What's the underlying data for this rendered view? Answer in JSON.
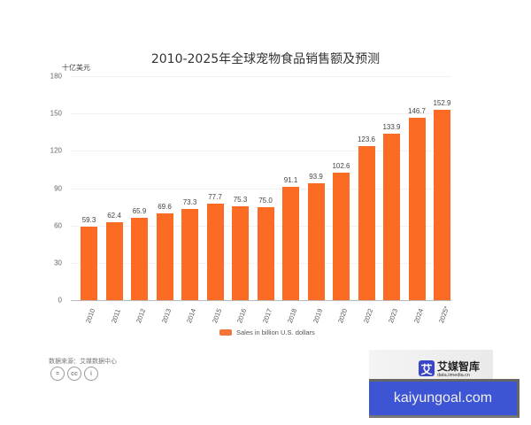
{
  "chart_data": {
    "type": "bar",
    "title": "2010-2025年全球宠物食品销售额及预测",
    "ylabel": "十亿美元",
    "xlabel": "",
    "ylim": [
      0,
      180
    ],
    "yticks": [
      "0",
      "30",
      "60",
      "90",
      "120",
      "150",
      "180"
    ],
    "grid": true,
    "legend_position": "bottom",
    "categories": [
      "2010",
      "2011",
      "2012",
      "2013",
      "2014",
      "2015",
      "2016",
      "2017",
      "2018",
      "2019",
      "2020",
      "2022",
      "2023",
      "2024",
      "2025*"
    ],
    "series": [
      {
        "name": "Sales in billion U.S. dollars",
        "color": "#fb6b24",
        "values": [
          59.3,
          62.4,
          65.9,
          69.6,
          73.3,
          77.7,
          75.3,
          75.0,
          91.1,
          93.9,
          102.6,
          123.6,
          133.9,
          146.7,
          152.9
        ]
      }
    ],
    "value_labels": [
      "59.3",
      "62.4",
      "65.9",
      "69.6",
      "73.3",
      "77.7",
      "75.3",
      "75.0",
      "91.1",
      "93.9",
      "102.6",
      "123.6",
      "133.9",
      "146.7",
      "152.9"
    ]
  },
  "footer": {
    "source": "数据来源：艾媒数据中心",
    "license_icons": [
      "=",
      "cc",
      "i"
    ]
  },
  "brand": {
    "logo_glyph": "艾",
    "name": "艾媒智库",
    "url": "data.iimedia.cn"
  },
  "watermark": {
    "text": "kaiyungoal.com"
  }
}
